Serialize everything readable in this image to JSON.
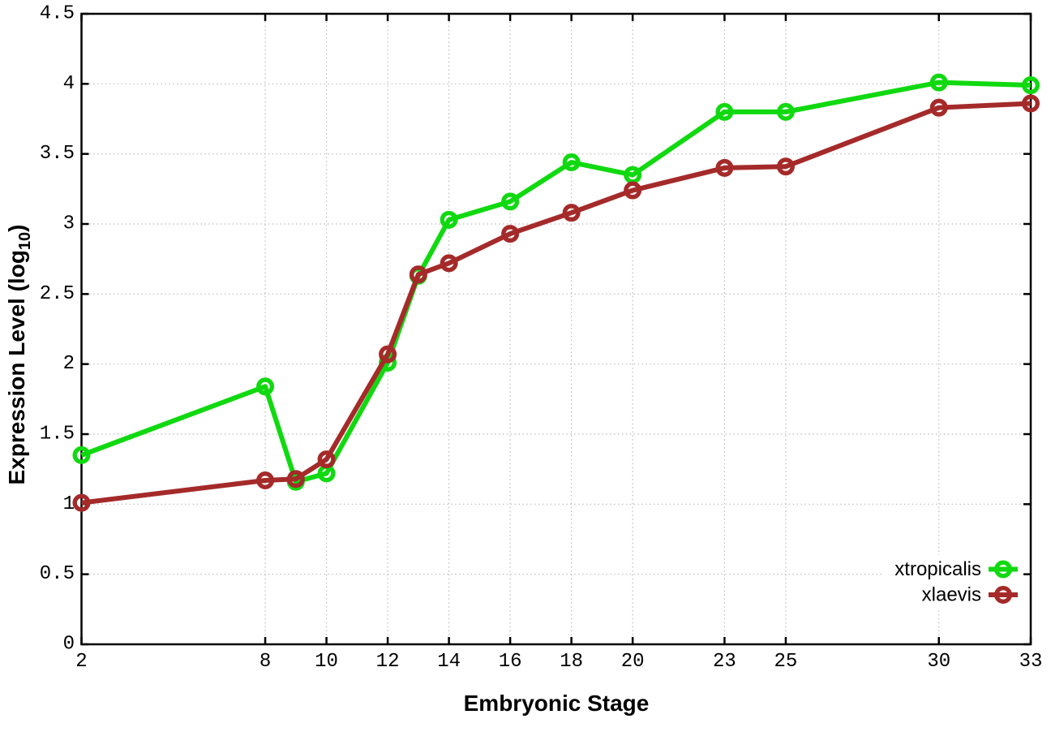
{
  "chart_data": {
    "type": "line",
    "title": "",
    "xlabel": "Embryonic Stage",
    "ylabel_prefix": "Expression Level (log",
    "ylabel_sub": "10",
    "ylabel_suffix": ")",
    "xlim": [
      2,
      33
    ],
    "ylim": [
      0,
      4.5
    ],
    "grid": true,
    "legend_position": "bottom-right",
    "marker_style": "open-circle",
    "x": [
      2,
      8,
      9,
      10,
      12,
      13,
      14,
      16,
      18,
      20,
      23,
      25,
      30,
      33
    ],
    "x_ticks": [
      2,
      8,
      10,
      12,
      14,
      16,
      18,
      20,
      23,
      25,
      30,
      33
    ],
    "x_tick_labels": [
      "2",
      "8",
      "10",
      "12",
      "14",
      "16",
      "18",
      "20",
      "23",
      "25",
      "30",
      "33"
    ],
    "y_ticks": [
      0,
      0.5,
      1,
      1.5,
      2,
      2.5,
      3,
      3.5,
      4,
      4.5
    ],
    "y_tick_labels": [
      "0",
      "0.5",
      "1",
      "1.5",
      "2",
      "2.5",
      "3",
      "3.5",
      "4",
      "4.5"
    ],
    "series": [
      {
        "name": "xtropicalis",
        "color": "#10d910",
        "values": [
          1.35,
          1.84,
          1.16,
          1.22,
          2.01,
          2.63,
          3.03,
          3.16,
          3.44,
          3.35,
          3.8,
          3.8,
          4.01,
          3.99
        ]
      },
      {
        "name": "xlaevis",
        "color": "#a52a2a",
        "values": [
          1.01,
          1.17,
          1.18,
          1.32,
          2.07,
          2.64,
          2.72,
          2.93,
          3.08,
          3.24,
          3.4,
          3.41,
          3.83,
          3.86
        ]
      }
    ],
    "colors": {
      "background": "#ffffff",
      "axis": "#000000",
      "grid": "#b9b9b9"
    }
  }
}
